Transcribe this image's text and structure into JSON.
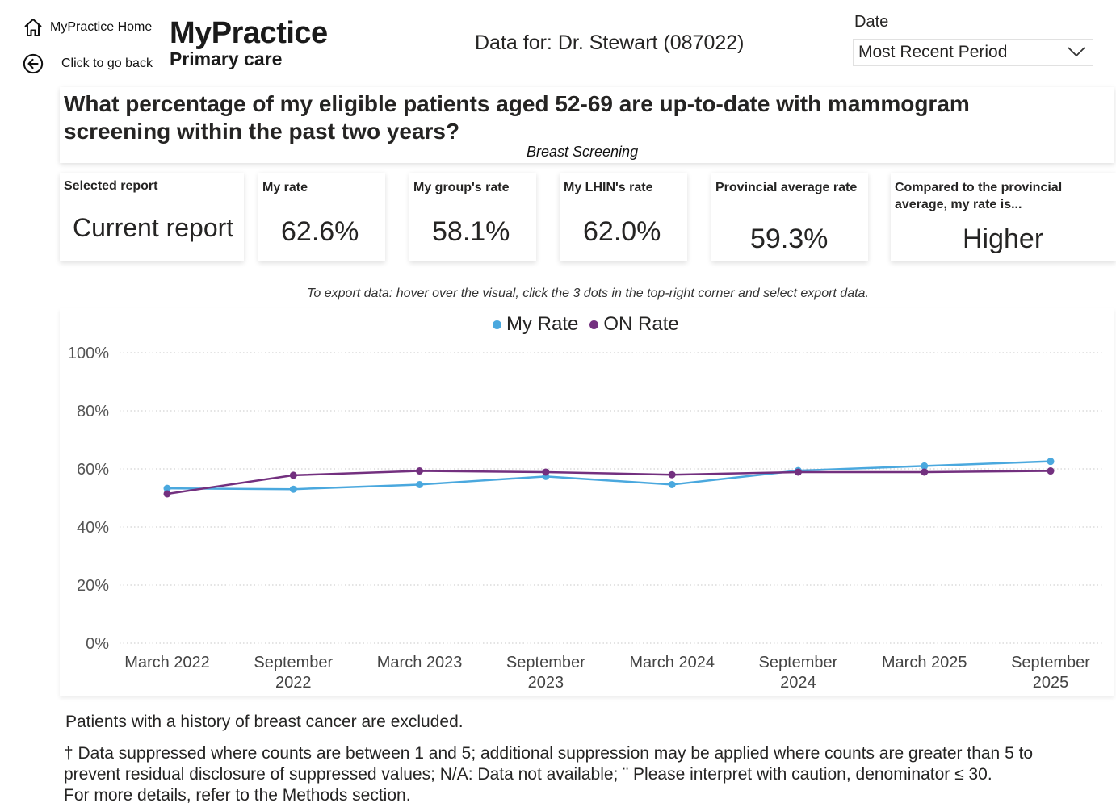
{
  "nav": {
    "home_label": "MyPractice Home",
    "back_label": "Click to go back",
    "home_icon": "home-icon",
    "back_icon": "back-arrow-icon"
  },
  "logo": {
    "line1": "MyPractice",
    "line2": "Primary care"
  },
  "header": {
    "data_for": "Data for: Dr. Stewart (087022)"
  },
  "date_filter": {
    "label": "Date",
    "selected": "Most Recent Period"
  },
  "question": {
    "text": "What percentage of my eligible patients aged 52-69 are up-to-date with mammogram screening within the past two years?",
    "subtitle": "Breast Screening"
  },
  "kpis": [
    {
      "label": "Selected report",
      "value": "Current report"
    },
    {
      "label": "My rate",
      "value": "62.6%"
    },
    {
      "label": "My group's rate",
      "value": "58.1%"
    },
    {
      "label": "My LHIN's rate",
      "value": "62.0%"
    },
    {
      "label": "Provincial average rate",
      "value": "59.3%"
    },
    {
      "label": "Compared to the provincial average, my rate is...",
      "value": "Higher"
    }
  ],
  "export_note": "To export data: hover over the visual, click the 3 dots in the top-right corner and select export data.",
  "chart_data": {
    "type": "line",
    "categories": [
      "March 2022",
      "September 2022",
      "March 2023",
      "September 2023",
      "March 2024",
      "September 2024",
      "March 2025",
      "September 2025"
    ],
    "category_lines": [
      [
        "March 2022"
      ],
      [
        "September",
        "2022"
      ],
      [
        "March 2023"
      ],
      [
        "September",
        "2023"
      ],
      [
        "March 2024"
      ],
      [
        "September",
        "2024"
      ],
      [
        "March 2025"
      ],
      [
        "September",
        "2025"
      ]
    ],
    "series": [
      {
        "name": "My Rate",
        "color": "#4aa8de",
        "values": [
          53.3,
          53.0,
          54.6,
          57.4,
          54.6,
          59.4,
          61.0,
          62.6
        ]
      },
      {
        "name": "ON Rate",
        "color": "#73307f",
        "values": [
          51.4,
          57.8,
          59.3,
          58.9,
          58.0,
          58.9,
          58.9,
          59.3
        ]
      }
    ],
    "yticks": [
      "0%",
      "20%",
      "40%",
      "60%",
      "80%",
      "100%"
    ],
    "ylim": [
      0,
      100
    ],
    "grid": true,
    "legend_position": "top-center"
  },
  "footnotes": {
    "exclusion": "Patients with a history of breast cancer are excluded.",
    "suppression_1": "† Data suppressed where counts are between 1 and 5; additional suppression may be applied where counts are greater than 5 to",
    "suppression_2": "prevent residual disclosure of suppressed values; N/A: Data not available; ¨ Please interpret with caution, denominator ≤ 30.",
    "suppression_3": "For more details, refer to the Methods section."
  }
}
